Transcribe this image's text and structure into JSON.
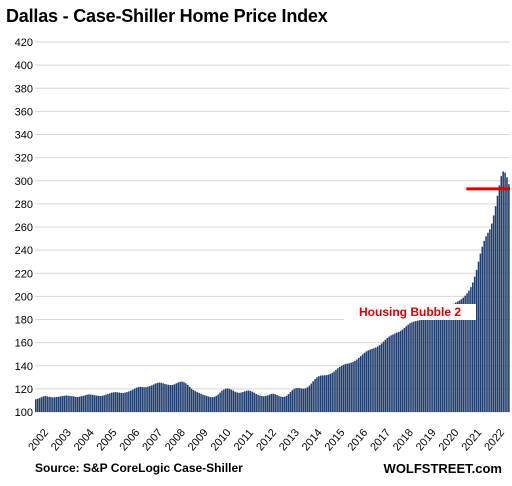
{
  "chart_data": {
    "type": "bar",
    "title": "Dallas - Case-Shiller Home Price Index",
    "xlabel": "",
    "ylabel": "",
    "ylim": [
      100,
      420
    ],
    "yticks": [
      100,
      120,
      140,
      160,
      180,
      200,
      220,
      240,
      260,
      280,
      300,
      320,
      340,
      360,
      380,
      400,
      420
    ],
    "x_tick_labels": [
      "2002",
      "2003",
      "2004",
      "2005",
      "2006",
      "2007",
      "2008",
      "2009",
      "2010",
      "2011",
      "2012",
      "2013",
      "2014",
      "2015",
      "2016",
      "2017",
      "2018",
      "2019",
      "2020",
      "2021",
      "2022"
    ],
    "frequency": "monthly",
    "start": "2002-01",
    "end": "2022-10",
    "bar_color": "#1f3d6e",
    "grid": "horizontal",
    "series": [
      {
        "values": [
          111,
          111.5,
          112,
          112.8,
          113.5,
          113.8,
          113.5,
          113.1,
          112.9,
          112.6,
          112.8,
          113,
          113.2,
          113.5,
          113.8,
          114,
          114.3,
          114.1,
          113.9,
          113.7,
          113.5,
          113.2,
          113,
          113.3,
          113.6,
          114,
          114.5,
          115,
          115.3,
          115.1,
          114.8,
          114.5,
          114.2,
          114,
          113.8,
          114,
          114.5,
          115,
          115.6,
          116.2,
          116.8,
          117,
          117.2,
          117,
          116.8,
          116.5,
          116.5,
          116.8,
          117.2,
          117.8,
          118.5,
          119.3,
          120.2,
          121,
          121.5,
          121.8,
          121.6,
          121.4,
          121.5,
          121.8,
          122.4,
          123,
          123.8,
          124.6,
          125.2,
          125.5,
          125.3,
          124.8,
          124.3,
          123.8,
          123.5,
          123.3,
          123.4,
          124,
          124.8,
          125.6,
          126.1,
          126.3,
          125.8,
          124.8,
          123.5,
          121.8,
          120.2,
          119,
          118,
          117.2,
          116.5,
          115.8,
          115,
          114.4,
          113.8,
          113.3,
          112.9,
          112.8,
          113.2,
          114,
          115.2,
          116.8,
          118.4,
          119.5,
          120.2,
          120.4,
          120,
          119.3,
          118.4,
          117.5,
          116.9,
          116.6,
          116.8,
          117.3,
          117.9,
          118.4,
          118.6,
          118.2,
          117.5,
          116.6,
          115.6,
          114.8,
          114.2,
          113.8,
          113.6,
          113.8,
          114.3,
          115,
          115.6,
          115.8,
          115.4,
          114.7,
          113.9,
          113.3,
          113,
          113.2,
          114,
          115.5,
          117.2,
          118.8,
          120,
          120.6,
          120.8,
          120.6,
          120.3,
          120.2,
          120.5,
          121.3,
          122.8,
          124.6,
          126.6,
          128.5,
          130,
          131,
          131.5,
          131.6,
          131.7,
          131.9,
          132.3,
          132.9,
          133.8,
          135,
          136.4,
          137.8,
          139,
          140,
          140.8,
          141.4,
          141.8,
          142.2,
          142.7,
          143.3,
          144.2,
          145.4,
          146.8,
          148.3,
          149.8,
          151.2,
          152.4,
          153.3,
          154,
          154.6,
          155.2,
          155.8,
          156.7,
          157.9,
          159.3,
          160.9,
          162.5,
          164,
          165.3,
          166.3,
          167.1,
          167.8,
          168.5,
          169.2,
          170.1,
          171.3,
          172.7,
          174.2,
          175.6,
          176.8,
          177.6,
          178.2,
          178.6,
          179,
          179.4,
          179.8,
          180.4,
          181.3,
          182.4,
          183.6,
          184.7,
          185.6,
          186.3,
          186.8,
          187.2,
          187.6,
          188,
          188.5,
          189.2,
          190.1,
          191.2,
          192.4,
          193.6,
          194.6,
          195.5,
          196.4,
          197.5,
          198.9,
          200.6,
          202.6,
          205,
          208,
          212,
          217,
          223,
          230,
          237,
          243,
          248,
          252,
          255,
          258,
          263,
          270,
          278,
          287,
          296,
          304,
          308,
          307,
          303,
          297
        ]
      }
    ],
    "reference_line": {
      "value": 293,
      "color": "#e00000"
    },
    "annotation": {
      "text": "Housing Bubble 2",
      "color": "#e00000"
    },
    "source": "Source: S&P CoreLogic Case-Shiller",
    "brand": "WOLFSTREET.com"
  }
}
